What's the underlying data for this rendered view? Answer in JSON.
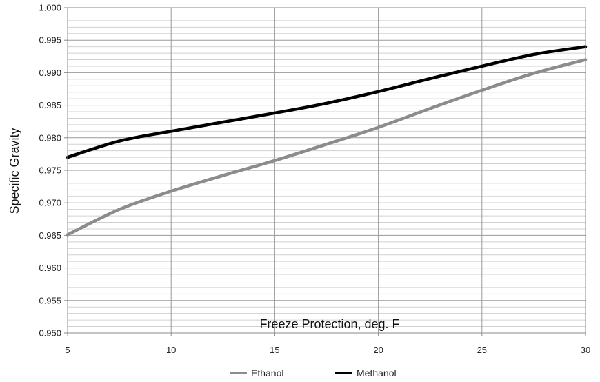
{
  "chart_data": {
    "type": "line",
    "xlabel": "Freeze Protection, deg. F",
    "ylabel": "Specific Gravity",
    "xlim": [
      5,
      30
    ],
    "ylim": [
      0.95,
      1.0
    ],
    "x_ticks": [
      "5",
      "10",
      "15",
      "20",
      "25",
      "30"
    ],
    "y_ticks": [
      "0.950",
      "0.955",
      "0.960",
      "0.965",
      "0.970",
      "0.975",
      "0.980",
      "0.985",
      "0.990",
      "0.995",
      "1.000"
    ],
    "grid": true,
    "minor_grid_step": 0.001,
    "legend_position": "bottom",
    "x": [
      5,
      7.5,
      10,
      12.5,
      15,
      17.5,
      20,
      22.5,
      25,
      27.5,
      30
    ],
    "series": [
      {
        "name": "Ethanol",
        "color": "#8c8c8c",
        "values": [
          0.9651,
          0.969,
          0.9718,
          0.9742,
          0.9765,
          0.979,
          0.9816,
          0.9845,
          0.9873,
          0.9899,
          0.992
        ]
      },
      {
        "name": "Methanol",
        "color": "#000000",
        "values": [
          0.977,
          0.9795,
          0.981,
          0.9824,
          0.9838,
          0.9853,
          0.9871,
          0.9891,
          0.991,
          0.9928,
          0.994
        ]
      }
    ]
  }
}
